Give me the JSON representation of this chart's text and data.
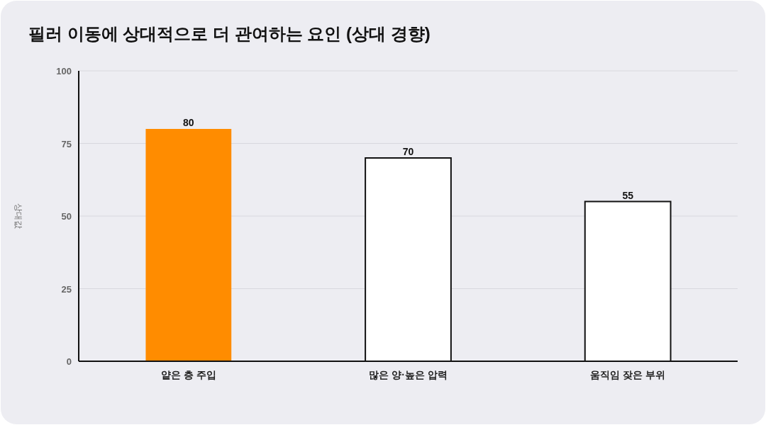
{
  "chart_data": {
    "type": "bar",
    "title": "필러 이동에 상대적으로 더 관여하는 요인 (상대 경향)",
    "ylabel": "상대값",
    "categories": [
      "얕은 층 주입",
      "많은 양·높은 압력",
      "움직임 잦은 부위"
    ],
    "values": [
      80,
      70,
      55
    ],
    "colors": [
      "#ff8c00",
      "#ffffff",
      "#ffffff"
    ],
    "ylim": [
      0,
      100
    ],
    "yticks": [
      0,
      25,
      50,
      75,
      100
    ],
    "grid": "y",
    "data_labels": true
  }
}
